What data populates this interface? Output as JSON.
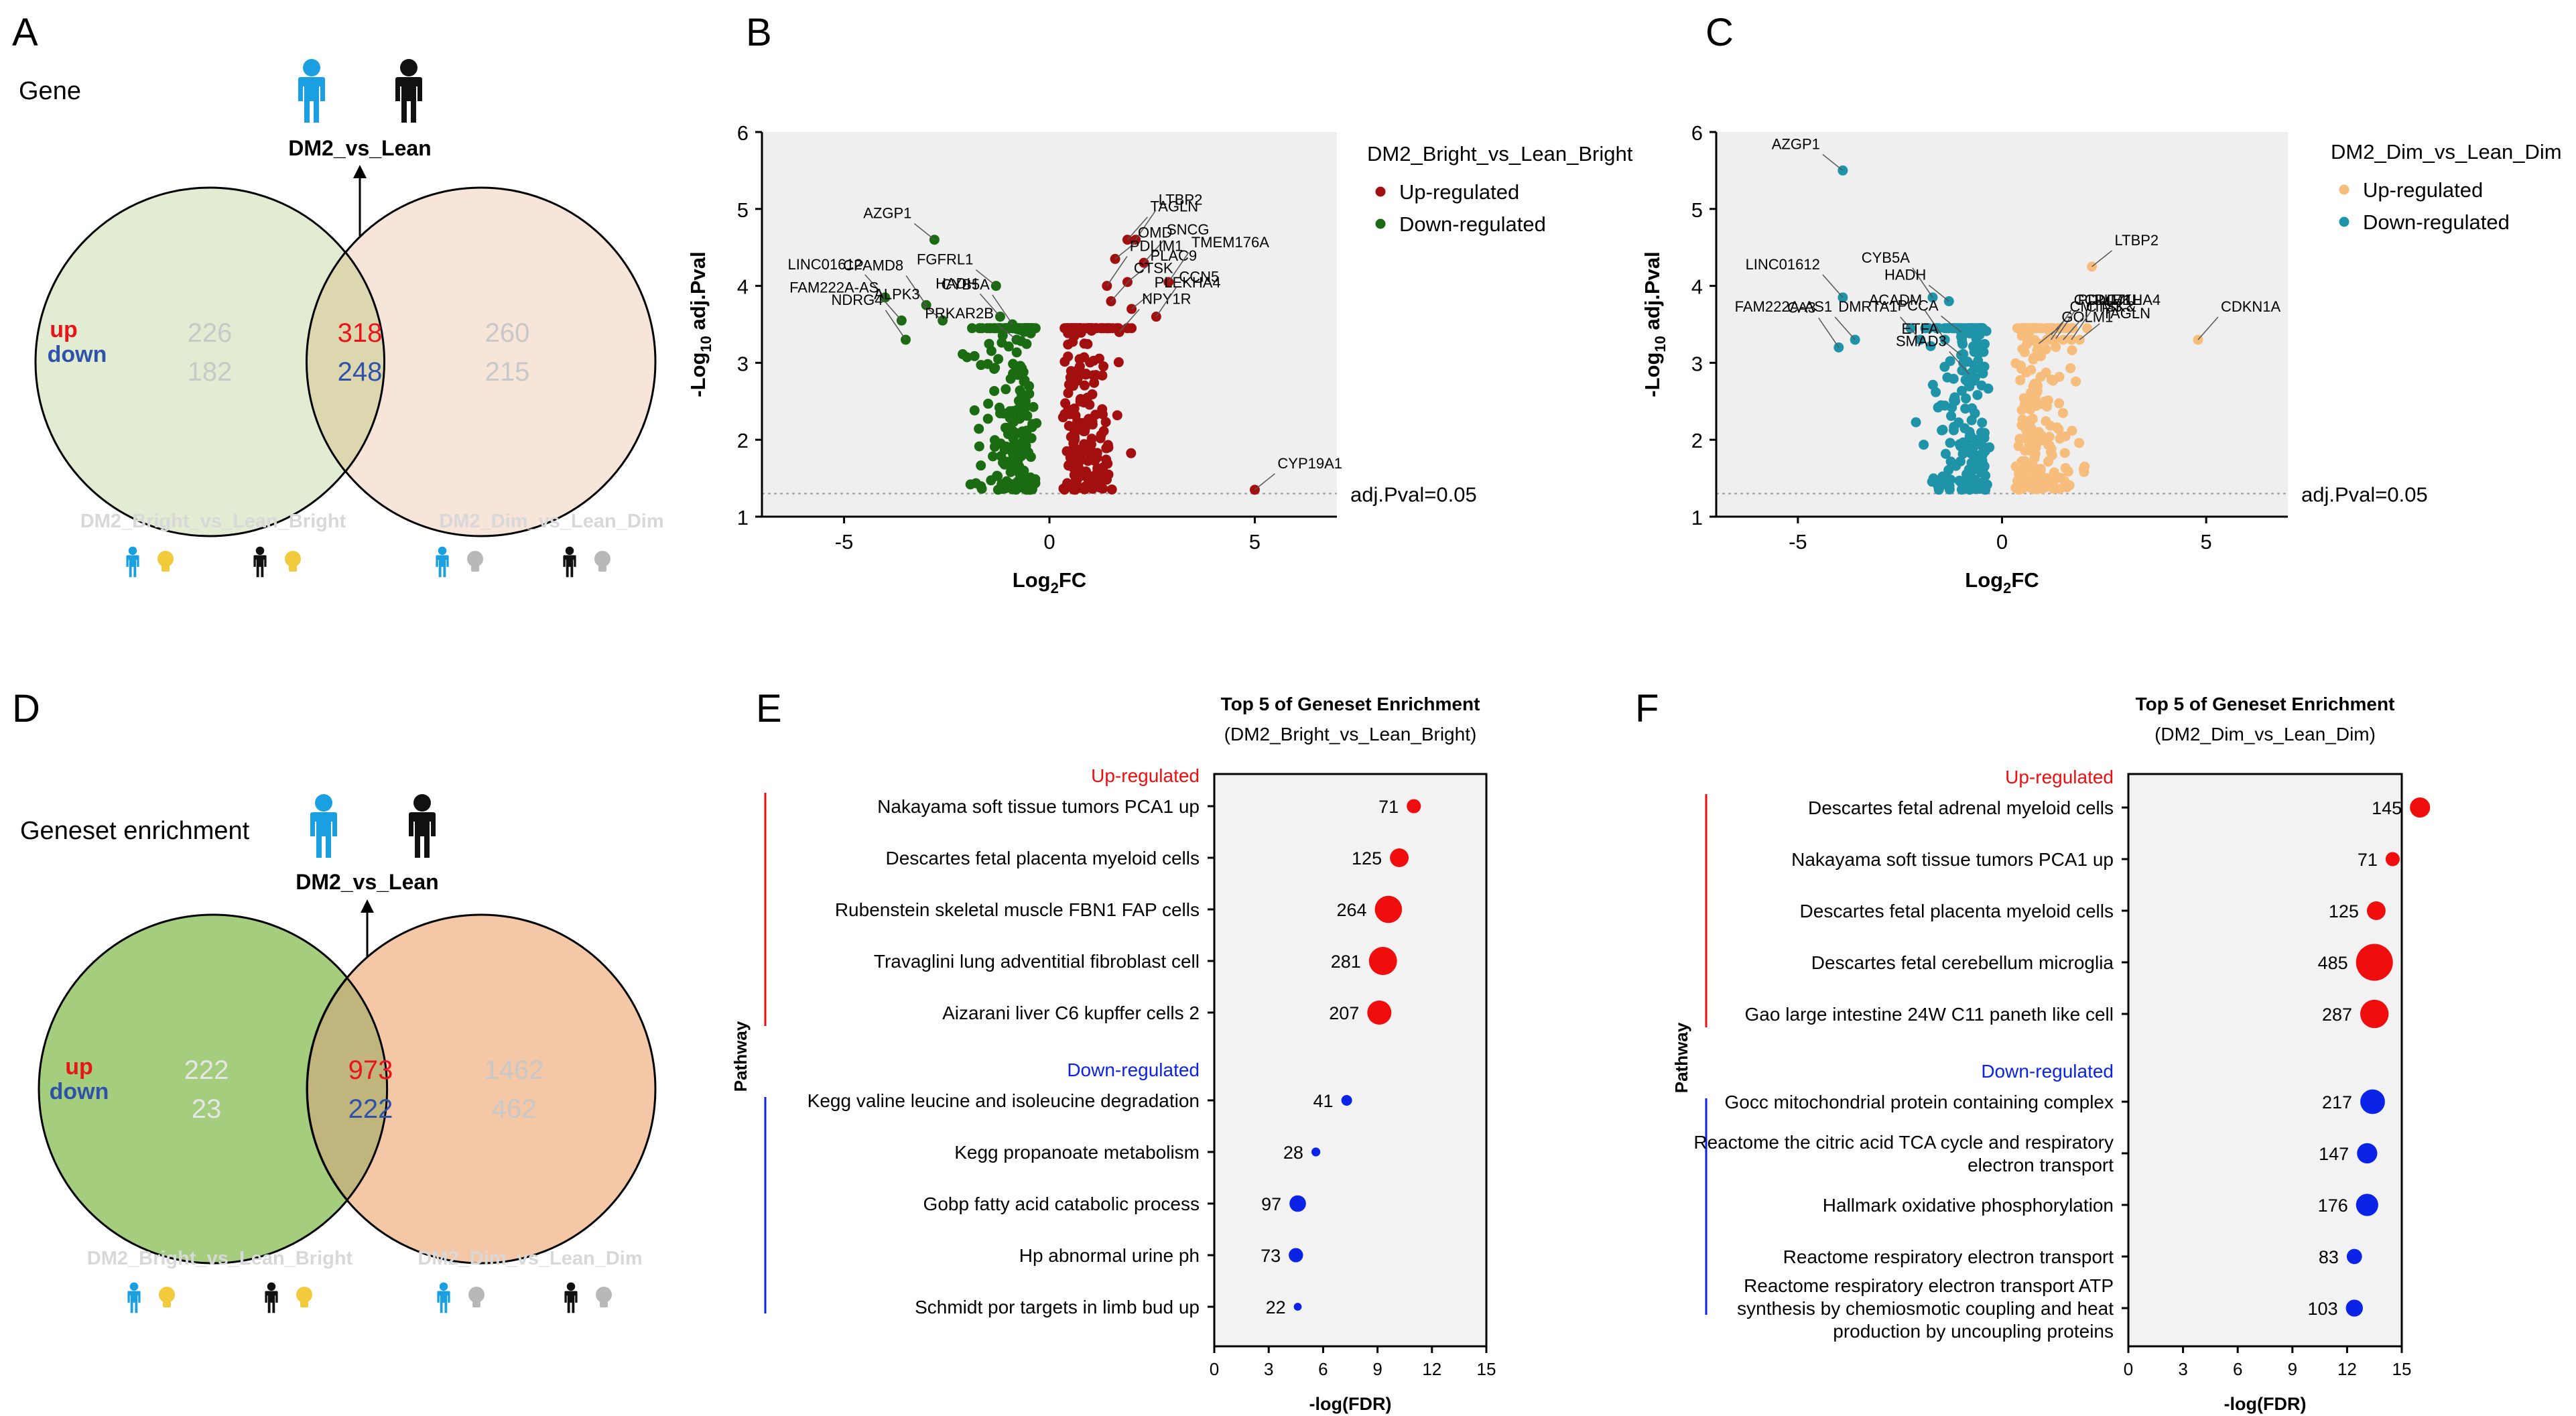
{
  "panels": {
    "A": "A",
    "B": "B",
    "C": "C",
    "D": "D",
    "E": "E",
    "F": "F"
  },
  "colors": {
    "up_red": "#e8161b",
    "down_blue": "#2f52a8",
    "dark_red": "#a30f0f",
    "dark_green": "#1a6b12",
    "orange": "#f7bd7d",
    "teal": "#1f93a8",
    "bubble_red": "#f00d0d",
    "bubble_blue": "#0a23e6",
    "venn_left_light": "#e1ecd2",
    "venn_right_light": "#f7e5d9",
    "venn_left_dark": "#a4cd7e",
    "venn_right_dark": "#f4c7a6",
    "overlap_light": "#ddd7b0",
    "overlap_dark": "#c1b57e",
    "person_blue": "#1a9fe0",
    "bulb": "#f2cb3c",
    "bulb_dim": "#b8b8b8"
  },
  "venn_A": {
    "section": "Gene",
    "comparison": "DM2_vs_Lean",
    "up_label": "up",
    "down_label": "down",
    "left": {
      "up": "226",
      "down": "182",
      "label": "DM2_Bright_vs_Lean_Bright"
    },
    "center": {
      "up": "318",
      "down": "248"
    },
    "right": {
      "up": "260",
      "down": "215",
      "label": "DM2_Dim_vs_Lean_Dim"
    }
  },
  "venn_D": {
    "section": "Geneset enrichment",
    "comparison": "DM2_vs_Lean",
    "up_label": "up",
    "down_label": "down",
    "left": {
      "up": "222",
      "down": "23",
      "label": "DM2_Bright_vs_Lean_Bright"
    },
    "center": {
      "up": "973",
      "down": "222"
    },
    "right": {
      "up": "1462",
      "down": "462",
      "label": "DM2_Dim_vs_Lean_Dim"
    }
  },
  "chart_data": [
    {
      "id": "B",
      "type": "scatter",
      "title": "DM2_Bright_vs_Lean_Bright",
      "xlabel": "Log2FC",
      "ylabel": "-Log10 adj.Pval",
      "xlim": [
        -7,
        7
      ],
      "ylim": [
        1,
        6
      ],
      "xticks": [
        "-5",
        "0",
        "5"
      ],
      "yticks": [
        "1",
        "2",
        "3",
        "4",
        "5",
        "6"
      ],
      "threshold": {
        "value": 1.3,
        "label": "adj.Pval=0.05"
      },
      "series": [
        {
          "name": "Up-regulated",
          "color": "#a30f0f"
        },
        {
          "name": "Down-regulated",
          "color": "#1a6b12"
        }
      ],
      "labeled_points": [
        {
          "gene": "AZGP1",
          "x": -2.8,
          "y": 4.6,
          "s": "down"
        },
        {
          "gene": "LINC01612",
          "x": -4.0,
          "y": 3.85,
          "s": "down"
        },
        {
          "gene": "CPAMD8",
          "x": -3.0,
          "y": 3.75,
          "s": "down"
        },
        {
          "gene": "ALPK3",
          "x": -2.6,
          "y": 3.55,
          "s": "down"
        },
        {
          "gene": "FAM222A-AS",
          "x": -3.6,
          "y": 3.55,
          "s": "down"
        },
        {
          "gene": "NDRG4",
          "x": -3.5,
          "y": 3.3,
          "s": "down"
        },
        {
          "gene": "FGFRL1",
          "x": -1.3,
          "y": 4.0,
          "s": "down"
        },
        {
          "gene": "HADH",
          "x": -1.2,
          "y": 3.6,
          "s": "down"
        },
        {
          "gene": "CYB5A",
          "x": -0.9,
          "y": 3.5,
          "s": "down"
        },
        {
          "gene": "PRKAR2B",
          "x": -0.8,
          "y": 3.3,
          "s": "down"
        },
        {
          "gene": "TAGLN",
          "x": 1.9,
          "y": 4.6,
          "s": "up"
        },
        {
          "gene": "LTBP2",
          "x": 2.1,
          "y": 4.6,
          "s": "up"
        },
        {
          "gene": "OMD",
          "x": 1.6,
          "y": 4.35,
          "s": "up"
        },
        {
          "gene": "SNCG",
          "x": 2.3,
          "y": 4.3,
          "s": "up"
        },
        {
          "gene": "PDLIM1",
          "x": 1.4,
          "y": 4.0,
          "s": "up"
        },
        {
          "gene": "PLAC9",
          "x": 1.9,
          "y": 4.05,
          "s": "up"
        },
        {
          "gene": "CTSK",
          "x": 1.5,
          "y": 3.8,
          "s": "up"
        },
        {
          "gene": "TMEM176A",
          "x": 2.9,
          "y": 4.05,
          "s": "up"
        },
        {
          "gene": "PLEKHA4",
          "x": 2.0,
          "y": 3.7,
          "s": "up"
        },
        {
          "gene": "NPY1R",
          "x": 1.7,
          "y": 3.4,
          "s": "up"
        },
        {
          "gene": "CCN5",
          "x": 2.6,
          "y": 3.6,
          "s": "up"
        },
        {
          "gene": "CYP19A1",
          "x": 5.0,
          "y": 1.35,
          "s": "up"
        }
      ]
    },
    {
      "id": "C",
      "type": "scatter",
      "title": "DM2_Dim_vs_Lean_Dim",
      "xlabel": "Log2FC",
      "ylabel": "-Log10 adj.Pval",
      "xlim": [
        -7,
        7
      ],
      "ylim": [
        1,
        6
      ],
      "xticks": [
        "-5",
        "0",
        "5"
      ],
      "yticks": [
        "1",
        "2",
        "3",
        "4",
        "5",
        "6"
      ],
      "threshold": {
        "value": 1.3,
        "label": "adj.Pval=0.05"
      },
      "series": [
        {
          "name": "Up-regulated",
          "color": "#f7bd7d"
        },
        {
          "name": "Down-regulated",
          "color": "#1f93a8"
        }
      ],
      "labeled_points": [
        {
          "gene": "AZGP1",
          "x": -3.9,
          "y": 5.5,
          "s": "down"
        },
        {
          "gene": "LINC01612",
          "x": -3.9,
          "y": 3.85,
          "s": "down"
        },
        {
          "gene": "CYB5A",
          "x": -1.7,
          "y": 3.85,
          "s": "down"
        },
        {
          "gene": "HADH",
          "x": -1.3,
          "y": 3.8,
          "s": "down"
        },
        {
          "gene": "DMRTA1",
          "x": -2.0,
          "y": 3.3,
          "s": "down"
        },
        {
          "gene": "ACADM",
          "x": -1.4,
          "y": 3.3,
          "s": "down"
        },
        {
          "gene": "PCCA",
          "x": -1.0,
          "y": 3.4,
          "s": "down"
        },
        {
          "gene": "FAM222A-AS1",
          "x": -3.6,
          "y": 3.3,
          "s": "down"
        },
        {
          "gene": "CA3",
          "x": -4.0,
          "y": 3.2,
          "s": "down"
        },
        {
          "gene": "ETFA",
          "x": -1.0,
          "y": 3.1,
          "s": "down"
        },
        {
          "gene": "SMAD3",
          "x": -0.8,
          "y": 2.85,
          "s": "down"
        },
        {
          "gene": "PDLIM1",
          "x": 1.3,
          "y": 3.3,
          "s": "up"
        },
        {
          "gene": "LTBP2",
          "x": 2.2,
          "y": 4.25,
          "s": "up"
        },
        {
          "gene": "CMTM3 &",
          "x": 1.1,
          "y": 3.3,
          "s": "up"
        },
        {
          "gene": "CCDC71L",
          "x": 1.2,
          "y": 3.3,
          "s": "up"
        },
        {
          "gene": "GOLM1",
          "x": 0.9,
          "y": 3.25,
          "s": "up"
        },
        {
          "gene": "CTSK",
          "x": 1.5,
          "y": 3.3,
          "s": "up"
        },
        {
          "gene": "PLEKHA4",
          "x": 1.7,
          "y": 3.3,
          "s": "up"
        },
        {
          "gene": "TAGLN",
          "x": 1.9,
          "y": 3.3,
          "s": "up"
        },
        {
          "gene": "CDKN1A",
          "x": 4.8,
          "y": 3.3,
          "s": "up"
        }
      ]
    },
    {
      "id": "E",
      "type": "scatter",
      "title": "Top 5 of Geneset Enrichment",
      "subtitle": "(DM2_Bright_vs_Lean_Bright)",
      "xlabel": "-log(FDR)",
      "ylabel": "Pathway",
      "xlim": [
        0,
        15
      ],
      "xticks": [
        "0",
        "3",
        "6",
        "9",
        "12",
        "15"
      ],
      "up_header": "Up-regulated",
      "down_header": "Down-regulated",
      "up": [
        {
          "label": "Nakayama soft tissue tumors PCA1 up",
          "x": 11.0,
          "size": 71
        },
        {
          "label": "Descartes fetal placenta myeloid cells",
          "x": 10.2,
          "size": 125
        },
        {
          "label": "Rubenstein skeletal muscle FBN1 FAP cells",
          "x": 9.6,
          "size": 264
        },
        {
          "label": "Travaglini lung adventitial fibroblast cell",
          "x": 9.3,
          "size": 281
        },
        {
          "label": "Aizarani liver C6 kupffer cells 2",
          "x": 9.1,
          "size": 207
        }
      ],
      "down": [
        {
          "label": "Kegg valine leucine and isoleucine degradation",
          "x": 7.3,
          "size": 41
        },
        {
          "label": "Kegg propanoate metabolism",
          "x": 5.6,
          "size": 28
        },
        {
          "label": "Gobp fatty acid catabolic process",
          "x": 4.6,
          "size": 97
        },
        {
          "label": "Hp abnormal urine ph",
          "x": 4.5,
          "size": 73
        },
        {
          "label": "Schmidt por targets in limb bud up",
          "x": 4.6,
          "size": 22
        }
      ]
    },
    {
      "id": "F",
      "type": "scatter",
      "title": "Top 5 of Geneset Enrichment",
      "subtitle": "(DM2_Dim_vs_Lean_Dim)",
      "xlabel": "-log(FDR)",
      "ylabel": "Pathway",
      "xlim": [
        0,
        15
      ],
      "xticks": [
        "0",
        "3",
        "6",
        "9",
        "12",
        "15"
      ],
      "up_header": "Up-regulated",
      "down_header": "Down-regulated",
      "up": [
        {
          "label": "Descartes fetal adrenal myeloid cells",
          "x": 16.0,
          "size": 145
        },
        {
          "label": "Nakayama soft tissue tumors PCA1 up",
          "x": 14.5,
          "size": 71
        },
        {
          "label": "Descartes fetal placenta myeloid cells",
          "x": 13.6,
          "size": 125
        },
        {
          "label": "Descartes fetal cerebellum microglia",
          "x": 13.5,
          "size": 485
        },
        {
          "label": "Gao large intestine 24W C11 paneth like cell",
          "x": 13.5,
          "size": 287
        }
      ],
      "down": [
        {
          "label": "Gocc mitochondrial protein containing complex",
          "x": 13.4,
          "size": 217
        },
        {
          "label": "Reactome the citric acid TCA cycle and respiratory\nelectron transport",
          "x": 13.1,
          "size": 147
        },
        {
          "label": "Hallmark oxidative phosphorylation",
          "x": 13.1,
          "size": 176
        },
        {
          "label": "Reactome respiratory electron transport",
          "x": 12.4,
          "size": 83
        },
        {
          "label": "Reactome respiratory electron transport ATP\nsynthesis by chemiosmotic coupling and heat\nproduction by uncoupling proteins",
          "x": 12.4,
          "size": 103
        }
      ]
    }
  ]
}
